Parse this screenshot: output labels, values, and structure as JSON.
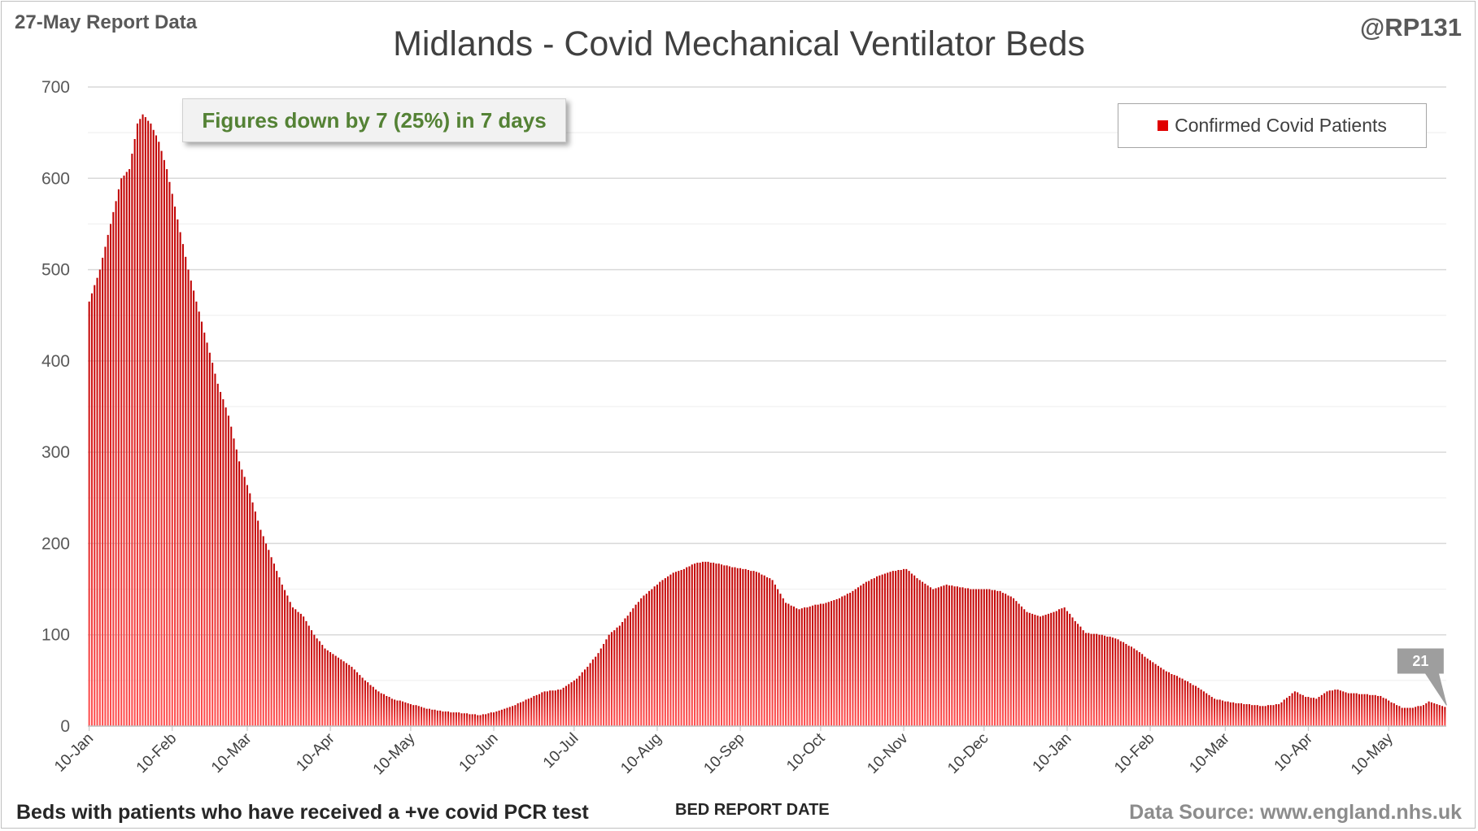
{
  "header": {
    "report_date": "27-May Report Data",
    "handle": "@RP131"
  },
  "footer": {
    "note": "Beds with patients who have received a +ve covid PCR test",
    "source": "Data Source: www.england.nhs.uk"
  },
  "annotation": "Figures down by 7 (25%) in 7 days",
  "last_value_label": "21",
  "colors": {
    "bar": "#c00000",
    "bar_light": "#ff5050",
    "grid": "#d9d9d9",
    "annotation_text": "#548235"
  },
  "chart_data": {
    "type": "bar",
    "title": "Midlands - Covid Mechanical Ventilator Beds",
    "xlabel": "BED REPORT DATE",
    "ylabel": "",
    "ylim": [
      0,
      700
    ],
    "yticks": [
      0,
      100,
      200,
      300,
      400,
      500,
      600,
      700
    ],
    "grid": true,
    "legend_position": "top-right",
    "x_start": "10-Jan",
    "x_tick_labels": [
      "10-Jan",
      "10-Feb",
      "10-Mar",
      "10-Apr",
      "10-May",
      "10-Jun",
      "10-Jul",
      "10-Aug",
      "10-Sep",
      "10-Oct",
      "10-Nov",
      "10-Dec",
      "10-Jan",
      "10-Feb",
      "10-Mar",
      "10-Apr",
      "10-May"
    ],
    "x_tick_day_index": [
      0,
      31,
      59,
      90,
      120,
      151,
      181,
      212,
      243,
      273,
      304,
      334,
      365,
      396,
      424,
      455,
      485
    ],
    "series": [
      {
        "name": "Confirmed Covid Patients",
        "keyframes_day_value": [
          [
            0,
            465
          ],
          [
            4,
            500
          ],
          [
            8,
            550
          ],
          [
            12,
            600
          ],
          [
            15,
            610
          ],
          [
            18,
            660
          ],
          [
            20,
            670
          ],
          [
            23,
            660
          ],
          [
            26,
            640
          ],
          [
            29,
            610
          ],
          [
            33,
            555
          ],
          [
            37,
            500
          ],
          [
            40,
            465
          ],
          [
            44,
            420
          ],
          [
            48,
            375
          ],
          [
            52,
            340
          ],
          [
            56,
            290
          ],
          [
            60,
            255
          ],
          [
            64,
            215
          ],
          [
            68,
            185
          ],
          [
            72,
            155
          ],
          [
            76,
            130
          ],
          [
            80,
            120
          ],
          [
            84,
            100
          ],
          [
            88,
            85
          ],
          [
            93,
            75
          ],
          [
            98,
            65
          ],
          [
            103,
            50
          ],
          [
            108,
            38
          ],
          [
            113,
            30
          ],
          [
            118,
            26
          ],
          [
            125,
            20
          ],
          [
            132,
            16
          ],
          [
            140,
            14
          ],
          [
            146,
            12
          ],
          [
            152,
            16
          ],
          [
            158,
            22
          ],
          [
            164,
            30
          ],
          [
            170,
            38
          ],
          [
            176,
            40
          ],
          [
            182,
            52
          ],
          [
            186,
            65
          ],
          [
            190,
            80
          ],
          [
            194,
            100
          ],
          [
            198,
            110
          ],
          [
            202,
            125
          ],
          [
            206,
            140
          ],
          [
            210,
            150
          ],
          [
            214,
            160
          ],
          [
            218,
            168
          ],
          [
            222,
            172
          ],
          [
            226,
            178
          ],
          [
            230,
            180
          ],
          [
            235,
            178
          ],
          [
            240,
            174
          ],
          [
            245,
            172
          ],
          [
            250,
            168
          ],
          [
            255,
            160
          ],
          [
            260,
            135
          ],
          [
            265,
            128
          ],
          [
            270,
            132
          ],
          [
            275,
            135
          ],
          [
            280,
            140
          ],
          [
            285,
            148
          ],
          [
            290,
            158
          ],
          [
            295,
            165
          ],
          [
            300,
            170
          ],
          [
            305,
            172
          ],
          [
            310,
            160
          ],
          [
            315,
            150
          ],
          [
            320,
            155
          ],
          [
            325,
            152
          ],
          [
            330,
            150
          ],
          [
            335,
            150
          ],
          [
            340,
            148
          ],
          [
            345,
            140
          ],
          [
            350,
            125
          ],
          [
            355,
            120
          ],
          [
            360,
            125
          ],
          [
            364,
            130
          ],
          [
            368,
            115
          ],
          [
            372,
            102
          ],
          [
            378,
            100
          ],
          [
            384,
            95
          ],
          [
            390,
            85
          ],
          [
            396,
            72
          ],
          [
            402,
            60
          ],
          [
            408,
            52
          ],
          [
            414,
            42
          ],
          [
            420,
            30
          ],
          [
            426,
            26
          ],
          [
            432,
            24
          ],
          [
            438,
            22
          ],
          [
            444,
            24
          ],
          [
            450,
            38
          ],
          [
            454,
            32
          ],
          [
            458,
            30
          ],
          [
            462,
            38
          ],
          [
            466,
            40
          ],
          [
            470,
            36
          ],
          [
            476,
            35
          ],
          [
            482,
            33
          ],
          [
            486,
            26
          ],
          [
            490,
            20
          ],
          [
            494,
            20
          ],
          [
            498,
            23
          ],
          [
            500,
            27
          ],
          [
            503,
            24
          ],
          [
            506,
            21
          ]
        ],
        "last_day_index": 506,
        "last_value": 21
      }
    ]
  }
}
